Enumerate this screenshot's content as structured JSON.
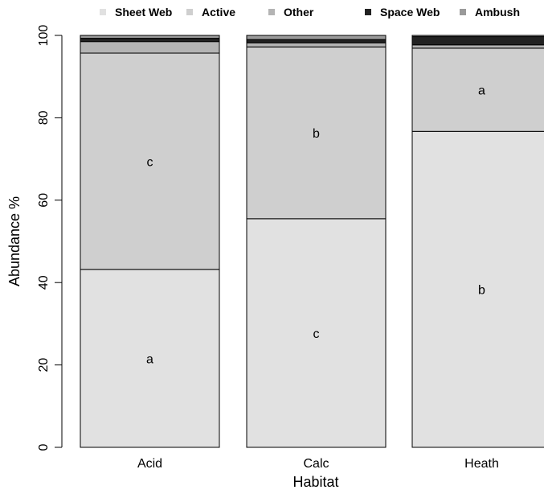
{
  "chart_data": {
    "type": "bar",
    "stacked": true,
    "xlabel": "Habitat",
    "ylabel": "Abundance %",
    "ylim": [
      0,
      100
    ],
    "yticks": [
      0,
      20,
      40,
      60,
      80,
      100
    ],
    "categories": [
      "Acid",
      "Calc",
      "Heath"
    ],
    "legend_position": "top",
    "series": [
      {
        "name": "Sheet Web",
        "color": "#e1e1e1",
        "values": [
          43.2,
          55.5,
          76.7
        ],
        "labels": [
          "a",
          "c",
          "b"
        ]
      },
      {
        "name": "Active",
        "color": "#cfcfcf",
        "values": [
          52.5,
          41.7,
          20.2
        ],
        "labels": [
          "c",
          "b",
          "a"
        ]
      },
      {
        "name": "Other",
        "color": "#b4b4b4",
        "values": [
          2.8,
          1.0,
          0.8
        ],
        "labels": [
          "",
          "",
          ""
        ]
      },
      {
        "name": "Space Web",
        "color": "#222222",
        "values": [
          0.8,
          0.8,
          2.0
        ],
        "labels": [
          "",
          "",
          ""
        ]
      },
      {
        "name": "Ambush",
        "color": "#9a9a9a",
        "values": [
          0.7,
          1.0,
          0.3
        ],
        "labels": [
          "",
          "",
          ""
        ]
      }
    ]
  }
}
